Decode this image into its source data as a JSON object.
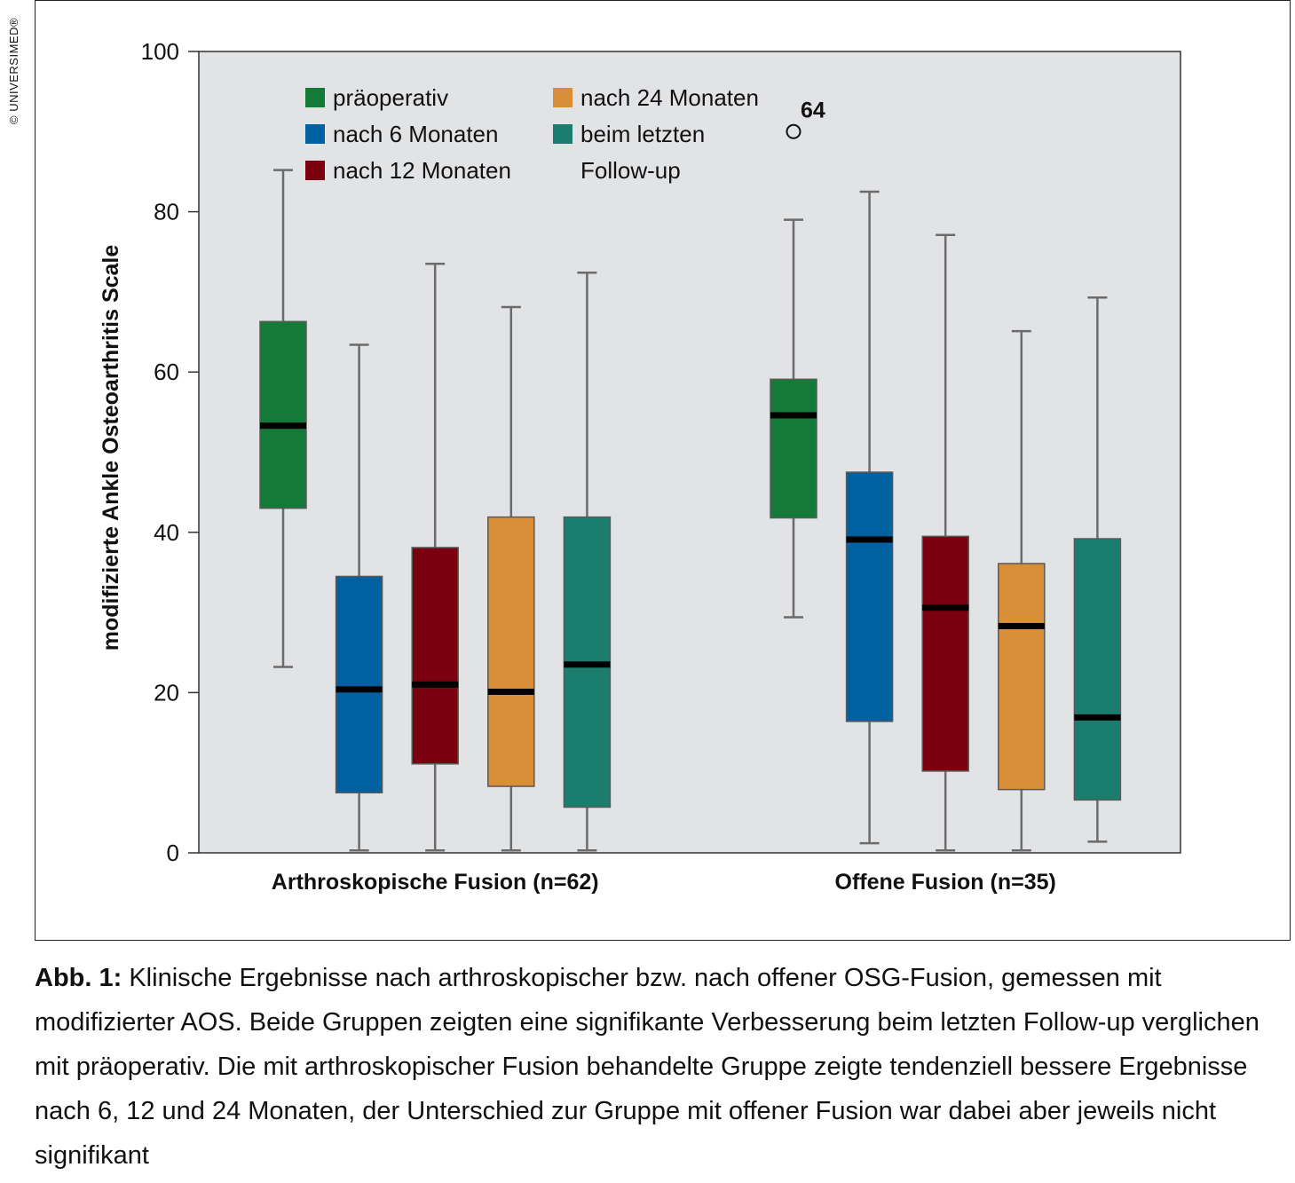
{
  "copyright": "© UNIVERSIMED®",
  "caption": {
    "label": "Abb. 1:",
    "text": "Klinische Ergebnisse nach arthroskopischer bzw. nach offener OSG-Fusion, gemessen mit modifizierter AOS. Beide Gruppen zeigten eine signifikante Verbesserung beim letzten Follow-up verglichen mit präoperativ. Die mit arthroskopischer Fusion behandelte Gruppe zeigte tendenziell bessere Ergebnisse nach 6, 12 und 24 Monaten, der Unterschied zur Gruppe mit offener Fusion war dabei aber jeweils nicht signifikant"
  },
  "chart_data": {
    "type": "box",
    "title": "",
    "ylabel": "modifizierte Ankle Osteoarthritis Scale",
    "xlabel": "",
    "ylim": [
      0,
      100
    ],
    "yticks": [
      0,
      20,
      40,
      60,
      80,
      100
    ],
    "grid": false,
    "legend_position": "top-left",
    "plot_background": "#e2e3e5",
    "series": [
      {
        "name": "präoperativ",
        "color": "#137a38"
      },
      {
        "name": "nach 6 Monaten",
        "color": "#0060a0"
      },
      {
        "name": "nach 12 Monaten",
        "color": "#7a0010"
      },
      {
        "name": "nach 24 Monaten",
        "color": "#d98e38"
      },
      {
        "name": "beim letzten Follow-up",
        "color": "#1a7d6d",
        "legend_lines": [
          "beim letzten",
          "Follow-up"
        ]
      }
    ],
    "groups": [
      {
        "label": "Arthroskopische Fusion (n=62)",
        "boxes": [
          {
            "series": "präoperativ",
            "min": 23.2,
            "q1": 43,
            "median": 53.3,
            "q3": 66.3,
            "max": 85.2
          },
          {
            "series": "nach 6 Monaten",
            "min": 0.3,
            "q1": 7.5,
            "median": 20.4,
            "q3": 34.5,
            "max": 63.4
          },
          {
            "series": "nach 12 Monaten",
            "min": 0.3,
            "q1": 11.1,
            "median": 21,
            "q3": 38.1,
            "max": 73.5
          },
          {
            "series": "nach 24 Monaten",
            "min": 0.3,
            "q1": 8.3,
            "median": 20.1,
            "q3": 41.9,
            "max": 68.1
          },
          {
            "series": "beim letzten Follow-up",
            "min": 0.3,
            "q1": 5.7,
            "median": 23.5,
            "q3": 41.9,
            "max": 72.4
          }
        ]
      },
      {
        "label": "Offene Fusion (n=35)",
        "boxes": [
          {
            "series": "präoperativ",
            "min": 29.4,
            "q1": 41.8,
            "median": 54.6,
            "q3": 59.1,
            "max": 79,
            "outliers": [
              {
                "value": 90,
                "label": "64"
              }
            ]
          },
          {
            "series": "nach 6 Monaten",
            "min": 1.2,
            "q1": 16.4,
            "median": 39.1,
            "q3": 47.5,
            "max": 82.5
          },
          {
            "series": "nach 12 Monaten",
            "min": 0.3,
            "q1": 10.2,
            "median": 30.6,
            "q3": 39.5,
            "max": 77.1
          },
          {
            "series": "nach 24 Monaten",
            "min": 0.3,
            "q1": 7.9,
            "median": 28.3,
            "q3": 36.1,
            "max": 65.1
          },
          {
            "series": "beim letzten Follow-up",
            "min": 1.4,
            "q1": 6.6,
            "median": 16.9,
            "q3": 39.2,
            "max": 69.3
          }
        ]
      }
    ]
  }
}
